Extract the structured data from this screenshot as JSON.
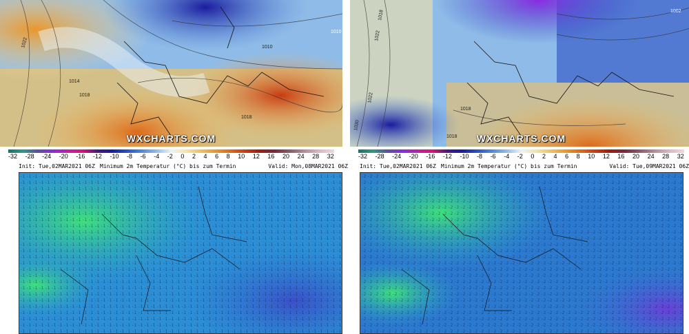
{
  "watermark": "WXCHARTS.COM",
  "scale": {
    "ticks": [
      "-32",
      "-28",
      "-24",
      "-20",
      "-16",
      "-12",
      "-10",
      "-8",
      "-6",
      "-4",
      "-2",
      "0",
      "2",
      "4",
      "6",
      "8",
      "10",
      "12",
      "16",
      "20",
      "24",
      "28",
      "32"
    ],
    "colors": [
      "#1f6f6f",
      "#2f9a7a",
      "#5e4ea2",
      "#8a2be2",
      "#c21fa6",
      "#d9147a",
      "#4b1a7a",
      "#1b1b9e",
      "#2c4ec4",
      "#4f86d8",
      "#8fbbe8",
      "#eef3f8",
      "#f5e3a6",
      "#f0c060",
      "#e8972c",
      "#dd6a1a",
      "#c93c12",
      "#9a1d10",
      "#7a2a3a",
      "#8c5a6a",
      "#b88a9a",
      "#d8b8c4",
      "#f0d6df"
    ]
  },
  "top_left": {
    "isobars": [
      "1022",
      "1018",
      "1010",
      "1018",
      "1010",
      "1014"
    ]
  },
  "top_right": {
    "isobars": [
      "1018",
      "1022",
      "1030",
      "1022",
      "1018",
      "1002",
      "1018"
    ]
  },
  "bottom_left": {
    "init": "Init: Tue,02MAR2021 06Z",
    "title": "Minimum 2m Temperatur (°C) bis zum Termin",
    "valid": "Valid: Mon,08MAR2021 06Z"
  },
  "bottom_right": {
    "init": "Init: Tue,02MAR2021 06Z",
    "title": "Minimum 2m Temperatur (°C) bis zum Termin",
    "valid": "Valid: Tue,09MAR2021 06Z"
  }
}
